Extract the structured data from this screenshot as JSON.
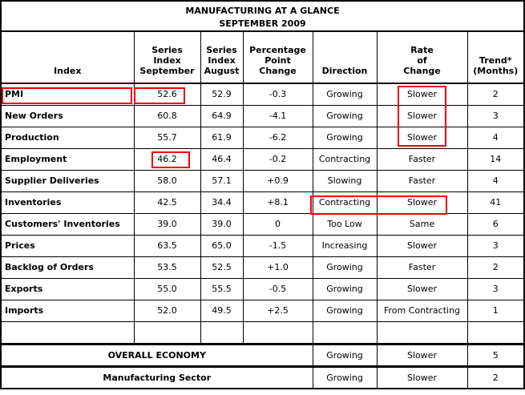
{
  "title": {
    "line1": "MANUFACTURING AT A GLANCE",
    "line2": "SEPTEMBER 2009"
  },
  "table": {
    "columns": [
      {
        "id": "index",
        "label": "Index"
      },
      {
        "id": "september",
        "label": "Series\nIndex\nSeptember"
      },
      {
        "id": "august",
        "label": "Series\nIndex\nAugust"
      },
      {
        "id": "change",
        "label": "Percentage\nPoint\nChange"
      },
      {
        "id": "direction",
        "label": "Direction"
      },
      {
        "id": "rate",
        "label": "Rate\nof\nChange"
      },
      {
        "id": "trend",
        "label": "Trend*\n(Months)"
      }
    ],
    "rows": [
      {
        "index": "PMI",
        "september": "52.6",
        "august": "52.9",
        "change": "-0.3",
        "direction": "Growing",
        "rate": "Slower",
        "trend": "2"
      },
      {
        "index": "New Orders",
        "september": "60.8",
        "august": "64.9",
        "change": "-4.1",
        "direction": "Growing",
        "rate": "Slower",
        "trend": "3"
      },
      {
        "index": "Production",
        "september": "55.7",
        "august": "61.9",
        "change": "-6.2",
        "direction": "Growing",
        "rate": "Slower",
        "trend": "4"
      },
      {
        "index": "Employment",
        "september": "46.2",
        "august": "46.4",
        "change": "-0.2",
        "direction": "Contracting",
        "rate": "Faster",
        "trend": "14"
      },
      {
        "index": "Supplier Deliveries",
        "september": "58.0",
        "august": "57.1",
        "change": "+0.9",
        "direction": "Slowing",
        "rate": "Faster",
        "trend": "4"
      },
      {
        "index": "Inventories",
        "september": "42.5",
        "august": "34.4",
        "change": "+8.1",
        "direction": "Contracting",
        "rate": "Slower",
        "trend": "41"
      },
      {
        "index": "Customers' Inventories",
        "september": "39.0",
        "august": "39.0",
        "change": "0",
        "direction": "Too Low",
        "rate": "Same",
        "trend": "6"
      },
      {
        "index": "Prices",
        "september": "63.5",
        "august": "65.0",
        "change": "-1.5",
        "direction": "Increasing",
        "rate": "Slower",
        "trend": "3"
      },
      {
        "index": "Backlog of Orders",
        "september": "53.5",
        "august": "52.5",
        "change": "+1.0",
        "direction": "Growing",
        "rate": "Faster",
        "trend": "2"
      },
      {
        "index": "Exports",
        "september": "55.0",
        "august": "55.5",
        "change": "-0.5",
        "direction": "Growing",
        "rate": "Slower",
        "trend": "3"
      },
      {
        "index": "Imports",
        "september": "52.0",
        "august": "49.5",
        "change": "+2.5",
        "direction": "Growing",
        "rate": "From Contracting",
        "trend": "1"
      },
      {
        "index": "",
        "september": "",
        "august": "",
        "change": "",
        "direction": "",
        "rate": "",
        "trend": ""
      }
    ]
  },
  "summary_rows": [
    {
      "label": "OVERALL ECONOMY",
      "direction": "Growing",
      "rate": "Slower",
      "trend": "5"
    },
    {
      "label": "Manufacturing Sector",
      "direction": "Growing",
      "rate": "Slower",
      "trend": "2"
    }
  ],
  "highlights": {
    "color": "#ee0000",
    "boxes": [
      {
        "id": "pmi-label",
        "target": "PMI index name cell"
      },
      {
        "id": "pmi-september",
        "target": "PMI September value 52.6"
      },
      {
        "id": "slower-rows-1-3",
        "target": "Rate of Change 'Slower' for PMI, New Orders and Production"
      },
      {
        "id": "employment-september",
        "target": "Employment September value 46.2"
      },
      {
        "id": "inventories-direction-rate",
        "target": "Inventories 'Contracting' and 'Slower'"
      }
    ]
  }
}
